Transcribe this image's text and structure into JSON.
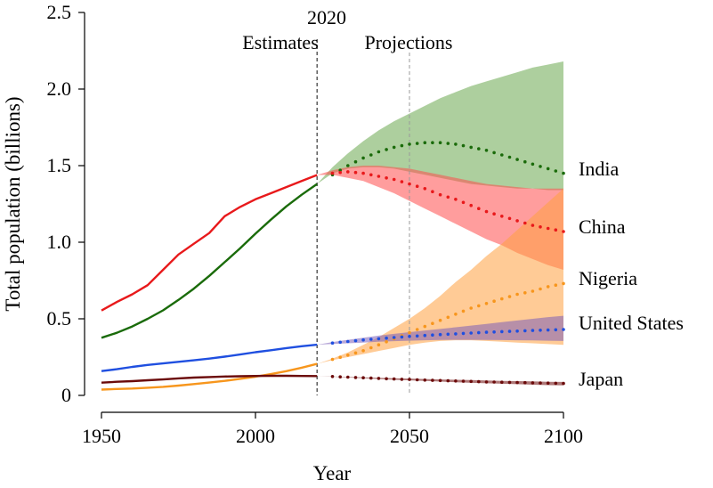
{
  "chart_data": {
    "type": "line",
    "title": "",
    "xlabel": "Year",
    "ylabel": "Total population (billions)",
    "xlim": [
      1950,
      2100
    ],
    "ylim": [
      0,
      2.5
    ],
    "x_ticks": [
      1950,
      2000,
      2050,
      2100
    ],
    "x_tick_labels": [
      "1950",
      "2000",
      "2050",
      "2100"
    ],
    "y_ticks": [
      0,
      0.5,
      1.0,
      1.5,
      2.0,
      2.5
    ],
    "y_tick_labels": [
      "0",
      "0.5",
      "1.0",
      "1.5",
      "2.0",
      "2.5"
    ],
    "grid": false,
    "annotations": {
      "year_marker": "2020",
      "estimates": "Estimates",
      "projections": "Projections",
      "divider_year": 2020,
      "secondary_divider_year": 2050
    },
    "series": [
      {
        "name": "India",
        "color": "#1a6b0a",
        "band_color": "#6aa84f",
        "estimates": {
          "x": [
            1950,
            1955,
            1960,
            1965,
            1970,
            1975,
            1980,
            1985,
            1990,
            1995,
            2000,
            2005,
            2010,
            2015,
            2020
          ],
          "y": [
            0.376,
            0.409,
            0.45,
            0.5,
            0.555,
            0.623,
            0.697,
            0.78,
            0.87,
            0.96,
            1.056,
            1.147,
            1.234,
            1.31,
            1.38
          ]
        },
        "projection": {
          "x": [
            2020,
            2025,
            2030,
            2035,
            2040,
            2045,
            2050,
            2055,
            2060,
            2065,
            2070,
            2075,
            2080,
            2085,
            2090,
            2095,
            2100
          ],
          "y": [
            1.38,
            1.44,
            1.5,
            1.55,
            1.59,
            1.62,
            1.64,
            1.65,
            1.65,
            1.64,
            1.62,
            1.6,
            1.57,
            1.54,
            1.51,
            1.48,
            1.45
          ],
          "lower": [
            1.38,
            1.45,
            1.48,
            1.49,
            1.49,
            1.48,
            1.46,
            1.44,
            1.42,
            1.4,
            1.38,
            1.37,
            1.36,
            1.35,
            1.35,
            1.34,
            1.34
          ],
          "upper": [
            1.38,
            1.49,
            1.58,
            1.66,
            1.73,
            1.79,
            1.84,
            1.89,
            1.94,
            1.98,
            2.02,
            2.05,
            2.08,
            2.11,
            2.14,
            2.16,
            2.18
          ]
        }
      },
      {
        "name": "China",
        "color": "#e8191b",
        "band_color": "#ff4d4d",
        "estimates": {
          "x": [
            1950,
            1955,
            1960,
            1965,
            1970,
            1975,
            1980,
            1985,
            1990,
            1995,
            2000,
            2005,
            2010,
            2015,
            2020
          ],
          "y": [
            0.554,
            0.61,
            0.66,
            0.72,
            0.82,
            0.92,
            0.99,
            1.06,
            1.17,
            1.23,
            1.28,
            1.32,
            1.36,
            1.4,
            1.439
          ]
        },
        "projection": {
          "x": [
            2020,
            2025,
            2030,
            2035,
            2040,
            2045,
            2050,
            2055,
            2060,
            2065,
            2070,
            2075,
            2080,
            2085,
            2090,
            2095,
            2100
          ],
          "y": [
            1.439,
            1.45,
            1.46,
            1.45,
            1.43,
            1.41,
            1.38,
            1.35,
            1.31,
            1.28,
            1.24,
            1.2,
            1.17,
            1.14,
            1.11,
            1.09,
            1.07
          ],
          "lower": [
            1.439,
            1.44,
            1.42,
            1.4,
            1.36,
            1.32,
            1.27,
            1.22,
            1.17,
            1.12,
            1.07,
            1.02,
            0.98,
            0.93,
            0.89,
            0.85,
            0.82
          ],
          "upper": [
            1.439,
            1.47,
            1.49,
            1.5,
            1.5,
            1.49,
            1.48,
            1.46,
            1.44,
            1.42,
            1.4,
            1.38,
            1.37,
            1.36,
            1.35,
            1.35,
            1.35
          ]
        }
      },
      {
        "name": "Nigeria",
        "color": "#f7961d",
        "band_color": "#ffa040",
        "estimates": {
          "x": [
            1950,
            1955,
            1960,
            1965,
            1970,
            1975,
            1980,
            1985,
            1990,
            1995,
            2000,
            2005,
            2010,
            2015,
            2020
          ],
          "y": [
            0.038,
            0.042,
            0.045,
            0.05,
            0.056,
            0.064,
            0.074,
            0.084,
            0.095,
            0.108,
            0.122,
            0.139,
            0.158,
            0.181,
            0.206
          ]
        },
        "projection": {
          "x": [
            2020,
            2025,
            2030,
            2035,
            2040,
            2045,
            2050,
            2055,
            2060,
            2065,
            2070,
            2075,
            2080,
            2085,
            2090,
            2095,
            2100
          ],
          "y": [
            0.206,
            0.235,
            0.263,
            0.292,
            0.33,
            0.37,
            0.41,
            0.45,
            0.49,
            0.53,
            0.57,
            0.6,
            0.63,
            0.66,
            0.68,
            0.71,
            0.73
          ],
          "lower": [
            0.206,
            0.23,
            0.25,
            0.27,
            0.29,
            0.31,
            0.33,
            0.345,
            0.355,
            0.36,
            0.36,
            0.355,
            0.35,
            0.345,
            0.34,
            0.335,
            0.33
          ],
          "upper": [
            0.206,
            0.24,
            0.28,
            0.33,
            0.38,
            0.44,
            0.5,
            0.57,
            0.65,
            0.74,
            0.82,
            0.91,
            0.99,
            1.08,
            1.17,
            1.26,
            1.35
          ]
        }
      },
      {
        "name": "United States",
        "color": "#1f4fe0",
        "band_color": "#7b5fb8",
        "estimates": {
          "x": [
            1950,
            1955,
            1960,
            1965,
            1970,
            1975,
            1980,
            1985,
            1990,
            1995,
            2000,
            2005,
            2010,
            2015,
            2020
          ],
          "y": [
            0.159,
            0.171,
            0.186,
            0.199,
            0.209,
            0.219,
            0.229,
            0.24,
            0.253,
            0.267,
            0.282,
            0.295,
            0.309,
            0.321,
            0.331
          ]
        },
        "projection": {
          "x": [
            2020,
            2025,
            2030,
            2035,
            2040,
            2045,
            2050,
            2055,
            2060,
            2065,
            2070,
            2075,
            2080,
            2085,
            2090,
            2095,
            2100
          ],
          "y": [
            0.331,
            0.342,
            0.352,
            0.362,
            0.37,
            0.378,
            0.385,
            0.391,
            0.397,
            0.402,
            0.407,
            0.412,
            0.416,
            0.42,
            0.424,
            0.427,
            0.43
          ],
          "lower": [
            0.331,
            0.336,
            0.34,
            0.345,
            0.35,
            0.354,
            0.357,
            0.36,
            0.362,
            0.363,
            0.363,
            0.362,
            0.361,
            0.36,
            0.359,
            0.357,
            0.355
          ],
          "upper": [
            0.331,
            0.348,
            0.363,
            0.377,
            0.39,
            0.402,
            0.413,
            0.424,
            0.434,
            0.445,
            0.456,
            0.467,
            0.478,
            0.489,
            0.5,
            0.511,
            0.52
          ]
        }
      },
      {
        "name": "Japan",
        "color": "#6b0a0a",
        "band_color": "#6b0a0a",
        "estimates": {
          "x": [
            1950,
            1955,
            1960,
            1965,
            1970,
            1975,
            1980,
            1985,
            1990,
            1995,
            2000,
            2005,
            2010,
            2015,
            2020
          ],
          "y": [
            0.083,
            0.089,
            0.093,
            0.099,
            0.104,
            0.111,
            0.116,
            0.12,
            0.123,
            0.125,
            0.127,
            0.128,
            0.128,
            0.127,
            0.126
          ]
        },
        "projection": {
          "x": [
            2020,
            2025,
            2030,
            2035,
            2040,
            2045,
            2050,
            2055,
            2060,
            2065,
            2070,
            2075,
            2080,
            2085,
            2090,
            2095,
            2100
          ],
          "y": [
            0.126,
            0.123,
            0.119,
            0.115,
            0.111,
            0.107,
            0.104,
            0.1,
            0.097,
            0.094,
            0.091,
            0.088,
            0.086,
            0.084,
            0.082,
            0.08,
            0.078
          ],
          "lower": [
            0.126,
            0.122,
            0.117,
            0.112,
            0.107,
            0.102,
            0.098,
            0.094,
            0.09,
            0.086,
            0.082,
            0.079,
            0.076,
            0.073,
            0.07,
            0.067,
            0.065
          ],
          "upper": [
            0.126,
            0.124,
            0.121,
            0.118,
            0.115,
            0.112,
            0.11,
            0.107,
            0.104,
            0.102,
            0.1,
            0.097,
            0.095,
            0.093,
            0.091,
            0.089,
            0.088
          ]
        }
      }
    ]
  }
}
